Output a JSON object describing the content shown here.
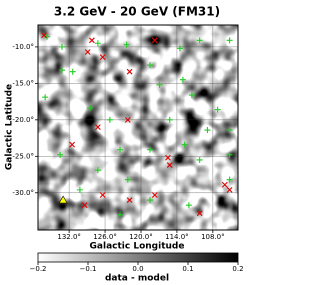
{
  "chart_data": {
    "type": "scatter",
    "title": "3.2 GeV - 20 GeV (FM31)",
    "xlabel": "Galactic Longitude",
    "ylabel": "Galactic Latitude",
    "xlim": [
      137.2,
      103.8
    ],
    "ylim": [
      -35.1,
      -7.0
    ],
    "xticks": [
      {
        "value": 132,
        "label": "132.0°"
      },
      {
        "value": 126,
        "label": "126.0°"
      },
      {
        "value": 120,
        "label": "120.0°"
      },
      {
        "value": 114,
        "label": "114.0°"
      },
      {
        "value": 108,
        "label": "108.0°"
      }
    ],
    "yticks": [
      {
        "value": -10,
        "label": "-10.0°"
      },
      {
        "value": -15,
        "label": "-15.0°"
      },
      {
        "value": -20,
        "label": "-20.0°"
      },
      {
        "value": -25,
        "label": "-25.0°"
      },
      {
        "value": -30,
        "label": "-30.0°"
      }
    ],
    "grid": true,
    "series": [
      {
        "color": "#22cc22",
        "marker": "plus",
        "x": [
          135.7,
          133.2,
          127.2,
          122.4,
          113.5,
          110.2,
          105.2,
          133.2,
          131.4,
          136.0,
          128.5,
          118.5,
          116.9,
          113.0,
          111.5,
          125.2,
          115.2,
          107.2,
          108.9,
          105.2,
          133.5,
          123.5,
          118.5,
          112.7,
          110.2,
          105.2,
          127.2,
          122.2,
          130.2,
          105.2,
          118.5,
          123.5,
          112.0
        ],
        "y": [
          -8.6,
          -10.0,
          -9.5,
          -9.7,
          -10.2,
          -9.1,
          -9.1,
          -13.2,
          -13.4,
          -16.9,
          -18.4,
          -12.5,
          -15.2,
          -14.5,
          -16.6,
          -20.0,
          -20.0,
          -18.6,
          -21.4,
          -21.4,
          -24.8,
          -24.1,
          -24.1,
          -23.4,
          -25.5,
          -24.8,
          -26.9,
          -28.2,
          -29.6,
          -28.2,
          -31.0,
          -33.0,
          -31.7
        ]
      },
      {
        "color": "#e00000",
        "marker": "cross",
        "x": [
          136.2,
          128.2,
          128.9,
          117.7,
          126.4,
          121.9,
          122.2,
          127.2,
          131.5,
          115.2,
          115.5,
          126.4,
          117.7,
          106.0,
          110.2,
          105.2,
          129.4,
          121.9
        ],
        "y": [
          -8.4,
          -9.1,
          -10.7,
          -9.1,
          -11.4,
          -13.4,
          -20.0,
          -21.0,
          -23.4,
          -26.2,
          -25.2,
          -30.3,
          -30.3,
          -28.9,
          -32.8,
          -29.6,
          -31.7,
          -31.0
        ]
      },
      {
        "color": "#ffff00",
        "marker": "triangle",
        "x": [
          133.0
        ],
        "y": [
          -31.0
        ]
      }
    ],
    "colorbar": {
      "label": "data - model",
      "clim": [
        -0.2,
        0.2
      ],
      "colors": [
        "#ffffff",
        "#000000"
      ],
      "ticks": [
        {
          "value": -0.2,
          "label": "−0.2"
        },
        {
          "value": -0.1,
          "label": "−0.1"
        },
        {
          "value": 0,
          "label": "0.0"
        },
        0.1,
        0.2
      ]
    }
  }
}
